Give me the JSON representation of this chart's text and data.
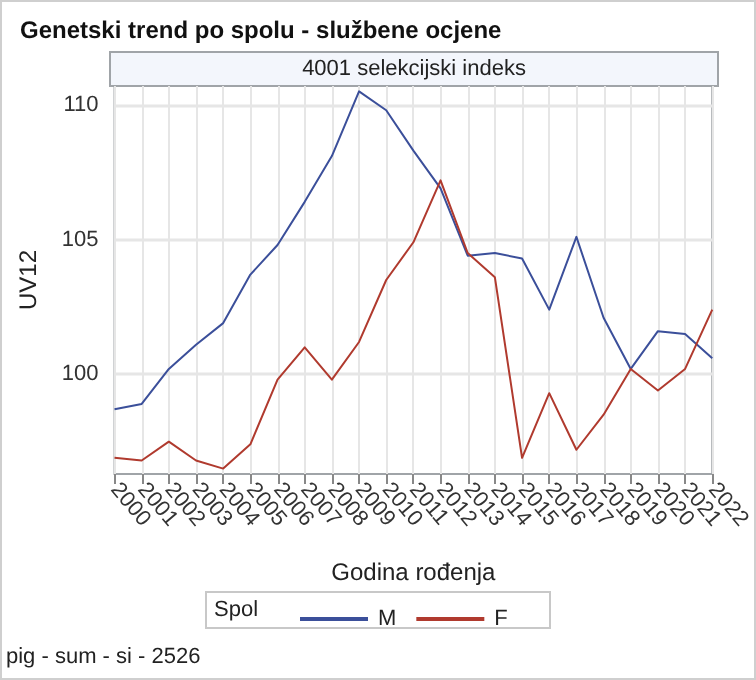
{
  "chart_data": {
    "type": "line",
    "title": "Genetski trend po spolu - službene ocjene",
    "subtitle": "4001 selekcijski indeks",
    "xlabel": "Godina rođenja",
    "ylabel": "UV12",
    "legend_title": "Spol",
    "categories": [
      "2000",
      "2001",
      "2002",
      "2003",
      "2004",
      "2005",
      "2006",
      "2007",
      "2008",
      "2009",
      "2010",
      "2011",
      "2012",
      "2013",
      "2014",
      "2015",
      "2016",
      "2017",
      "2018",
      "2019",
      "2020",
      "2021",
      "2022"
    ],
    "series": [
      {
        "name": "M",
        "color": "#3b4f9a",
        "values": [
          98.7,
          98.9,
          100.2,
          101.1,
          101.9,
          103.7,
          104.8,
          106.4,
          108.1,
          110.5,
          109.8,
          108.3,
          106.9,
          104.4,
          104.5,
          104.3,
          102.4,
          105.1,
          102.1,
          100.2,
          101.6,
          101.5,
          100.6
        ]
      },
      {
        "name": "F",
        "color": "#b03a2e",
        "values": [
          96.9,
          96.8,
          97.5,
          96.8,
          96.5,
          97.4,
          99.8,
          101.0,
          99.8,
          101.2,
          103.5,
          104.9,
          107.2,
          104.5,
          103.6,
          96.9,
          99.3,
          97.2,
          98.5,
          100.2,
          99.4,
          100.2,
          102.4
        ]
      }
    ],
    "ylim": [
      96.3,
      110.7
    ],
    "yticks": [
      100,
      105,
      110
    ],
    "grid": true,
    "legend": "bottom",
    "marker": "none",
    "line_style": "solid",
    "annotations": [
      "pig - sum - si - 2526"
    ]
  }
}
